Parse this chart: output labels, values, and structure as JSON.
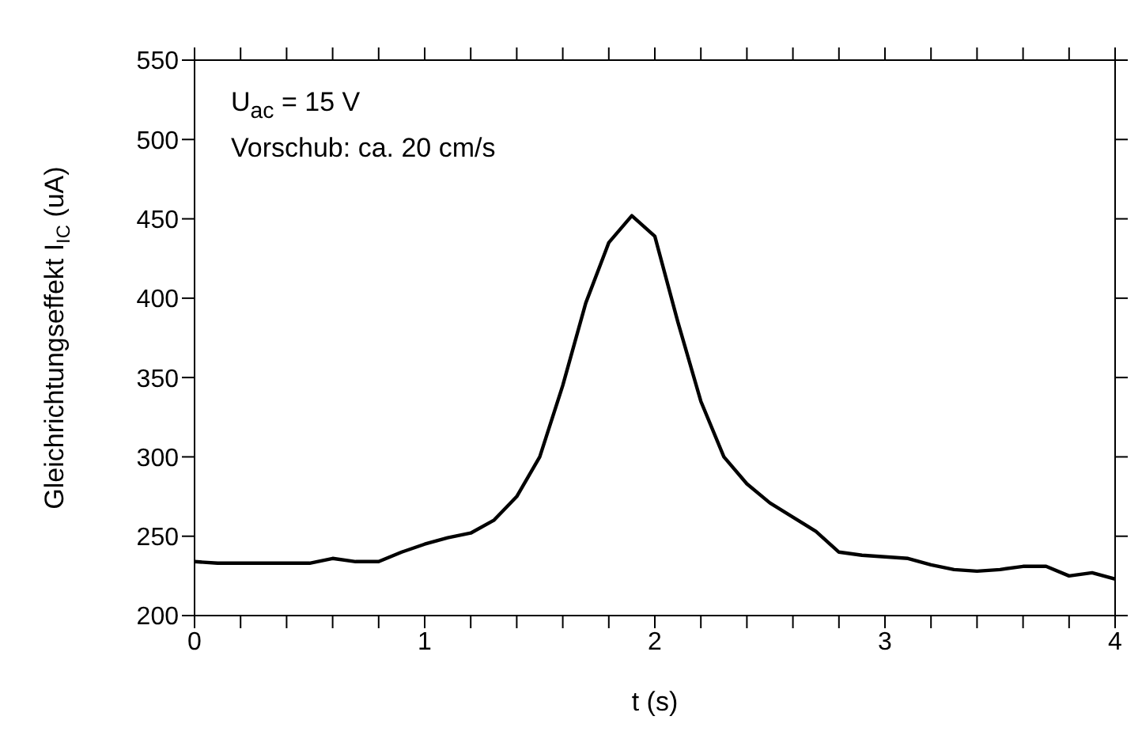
{
  "chart_data": {
    "type": "line",
    "xlabel": "t (s)",
    "ylabel": "Gleichrichtungseffekt I$_{IC}$ (uA)",
    "annotations": [
      "U$_{ac}$ = 15 V",
      "Vorschub: ca. 20 cm/s"
    ],
    "xlim": [
      0,
      4
    ],
    "xticks": [
      0,
      {
        "value": 0.2,
        "label": null
      },
      {
        "value": 0.4,
        "label": null
      },
      {
        "value": 0.6,
        "label": null
      },
      {
        "value": 0.8,
        "label": null
      },
      1,
      {
        "value": 1.2,
        "label": null
      },
      {
        "value": 1.4,
        "label": null
      },
      {
        "value": 1.6,
        "label": null
      },
      {
        "value": 1.8,
        "label": null
      },
      2,
      {
        "value": 2.2,
        "label": null
      },
      {
        "value": 2.4,
        "label": null
      },
      {
        "value": 2.6,
        "label": null
      },
      {
        "value": 2.8,
        "label": null
      },
      3,
      {
        "value": 3.2,
        "label": null
      },
      {
        "value": 3.4,
        "label": null
      },
      {
        "value": 3.6,
        "label": null
      },
      {
        "value": 3.8,
        "label": null
      },
      4
    ],
    "ylim": [
      200,
      550
    ],
    "yticks": [
      200,
      250,
      300,
      350,
      400,
      450,
      500,
      550
    ],
    "grid": false,
    "legend": false,
    "marker": "none",
    "line_style": "solid",
    "x": [
      0,
      0.1,
      0.2,
      0.3,
      0.4,
      0.5,
      0.6,
      0.7,
      0.8,
      0.9,
      1.0,
      1.1,
      1.2,
      1.3,
      1.4,
      1.5,
      1.6,
      1.7,
      1.8,
      1.9,
      2.0,
      2.1,
      2.2,
      2.3,
      2.4,
      2.5,
      2.6,
      2.7,
      2.8,
      2.9,
      3.0,
      3.1,
      3.2,
      3.3,
      3.4,
      3.5,
      3.6,
      3.7,
      3.8,
      3.9,
      4.0
    ],
    "series": [
      {
        "color": "#000000",
        "values": [
          234,
          233,
          233,
          233,
          233,
          233,
          236,
          234,
          234,
          240,
          245,
          249,
          252,
          260,
          275,
          300,
          345,
          397,
          435,
          452,
          439,
          385,
          335,
          300,
          283,
          271,
          262,
          253,
          240,
          238,
          237,
          236,
          232,
          229,
          228,
          229,
          231,
          231,
          225,
          227,
          223
        ]
      }
    ]
  }
}
